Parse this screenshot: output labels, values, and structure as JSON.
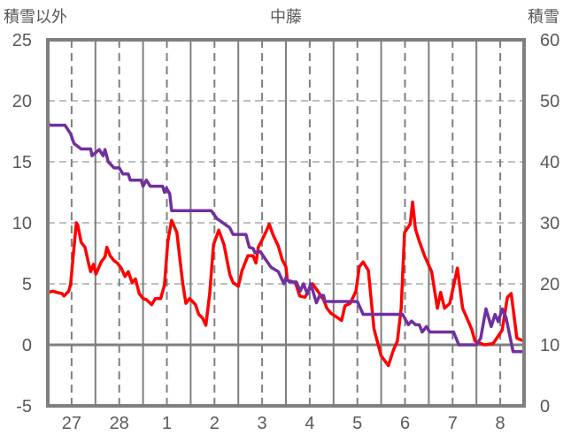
{
  "chart_data": {
    "type": "line",
    "title": "中藤",
    "ylabel_left": "積雪以外",
    "ylabel_right": "積雪",
    "ylim_left": [
      -5,
      25
    ],
    "ylim_right": [
      0,
      60
    ],
    "yticks_left": [
      "25",
      "20",
      "15",
      "10",
      "5",
      "0",
      "-5"
    ],
    "yticks_right": [
      "60",
      "50",
      "40",
      "30",
      "20",
      "10",
      "0"
    ],
    "xlim_days": [
      0,
      10
    ],
    "x_categories": [
      "27",
      "28",
      "1",
      "2",
      "3",
      "4",
      "5",
      "6",
      "7",
      "8"
    ],
    "grid": true,
    "legend": "none",
    "colors": {
      "red_series": "#ff0000",
      "snow_series": "#7030a0",
      "axis": "#7f7f7f"
    },
    "series": [
      {
        "name": "積雪以外",
        "axis": "left",
        "color": "#ff0000",
        "x": [
          0,
          0.11,
          0.19,
          0.3,
          0.34,
          0.44,
          0.48,
          0.55,
          0.6,
          0.63,
          0.7,
          0.78,
          0.86,
          0.9,
          0.96,
          1.01,
          1.12,
          1.2,
          1.24,
          1.31,
          1.39,
          1.46,
          1.54,
          1.62,
          1.69,
          1.77,
          1.84,
          1.92,
          2.0,
          2.07,
          2.18,
          2.26,
          2.37,
          2.45,
          2.52,
          2.6,
          2.71,
          2.83,
          2.9,
          2.98,
          3.1,
          3.17,
          3.25,
          3.32,
          3.4,
          3.48,
          3.59,
          3.7,
          3.82,
          3.89,
          4.0,
          4.08,
          4.2,
          4.31,
          4.37,
          4.42,
          4.5,
          4.61,
          4.65,
          4.73,
          4.84,
          4.92,
          5.0,
          5.03,
          5.2,
          5.29,
          5.4,
          5.56,
          5.67,
          5.79,
          5.86,
          5.94,
          6.17,
          6.24,
          6.35,
          6.47,
          6.54,
          6.62,
          6.73,
          6.85,
          7.0,
          7.15,
          7.26,
          7.34,
          7.42,
          7.49,
          7.61,
          7.66,
          7.72,
          7.8,
          7.91,
          8.06,
          8.18,
          8.25,
          8.33,
          8.44,
          8.6,
          8.71,
          8.9,
          8.97,
          9.17,
          9.35,
          9.54,
          9.65,
          9.73,
          9.85,
          10.0
        ],
        "y": [
          4.3,
          4.4,
          4.3,
          4.2,
          4.0,
          4.4,
          5.0,
          8.0,
          10.0,
          9.8,
          8.4,
          8.0,
          6.6,
          6.0,
          6.6,
          5.8,
          6.8,
          7.2,
          8.0,
          7.3,
          6.9,
          6.7,
          6.3,
          5.6,
          6.0,
          5.1,
          5.4,
          4.2,
          3.8,
          3.7,
          3.3,
          3.8,
          3.8,
          4.9,
          8.5,
          10.2,
          9.2,
          5.1,
          3.4,
          3.8,
          3.3,
          2.5,
          2.2,
          1.6,
          4.2,
          8.2,
          9.4,
          8.2,
          5.8,
          5.1,
          4.8,
          6.1,
          7.3,
          7.3,
          6.7,
          8.0,
          8.6,
          9.5,
          9.9,
          9.0,
          8.1,
          7.0,
          6.4,
          5.3,
          5.1,
          4.0,
          3.9,
          5.0,
          4.4,
          3.7,
          3.0,
          2.6,
          2.0,
          3.2,
          3.4,
          4.4,
          6.4,
          6.8,
          6.1,
          1.3,
          -0.9,
          -1.7,
          -0.4,
          0.3,
          3.0,
          9.2,
          9.9,
          11.7,
          9.5,
          8.5,
          7.3,
          6.0,
          3.0,
          4.3,
          3.0,
          3.4,
          6.3,
          3.0,
          1.3,
          0.3,
          0.0,
          0.1,
          1.2,
          3.9,
          4.2,
          0.55,
          0.3
        ]
      },
      {
        "name": "積雪",
        "axis": "right",
        "color": "#7030a0",
        "x": [
          0,
          0.02,
          0.36,
          0.48,
          0.55,
          0.7,
          0.9,
          0.93,
          1.08,
          1.16,
          1.2,
          1.27,
          1.39,
          1.5,
          1.58,
          1.69,
          1.73,
          1.96,
          2.0,
          2.07,
          2.15,
          2.41,
          2.45,
          2.49,
          2.56,
          2.6,
          3.43,
          3.55,
          3.82,
          3.89,
          4.16,
          4.23,
          4.31,
          4.35,
          4.46,
          4.61,
          4.69,
          4.84,
          4.96,
          5.0,
          5.07,
          5.22,
          5.3,
          5.37,
          5.45,
          5.52,
          5.64,
          5.71,
          5.79,
          5.82,
          6.5,
          6.62,
          7.45,
          7.57,
          7.64,
          7.72,
          7.8,
          7.86,
          7.95,
          8.02,
          8.52,
          8.63,
          9.0,
          9.09,
          9.2,
          9.31,
          9.39,
          9.46,
          9.54,
          9.62,
          9.77,
          10.0
        ],
        "y": [
          47,
          46,
          46,
          44.6,
          43,
          42.1,
          42.1,
          41,
          42,
          41,
          42,
          40,
          39,
          39,
          38,
          38,
          37,
          37,
          36,
          37,
          36,
          36,
          35,
          35.7,
          34.8,
          32,
          32,
          30.7,
          29.2,
          28.1,
          28.1,
          26,
          25.8,
          25.1,
          25.3,
          23.6,
          22.7,
          22,
          20,
          21,
          20.3,
          20.3,
          18.8,
          20,
          18.3,
          20,
          16.9,
          18.1,
          18.1,
          17.1,
          17.1,
          15,
          15,
          13.3,
          13.9,
          13.3,
          13.3,
          12.1,
          13,
          12.1,
          12.1,
          10,
          10,
          11.1,
          15.9,
          13,
          15,
          13.8,
          15.9,
          14.5,
          8.9,
          8.9
        ]
      }
    ]
  }
}
